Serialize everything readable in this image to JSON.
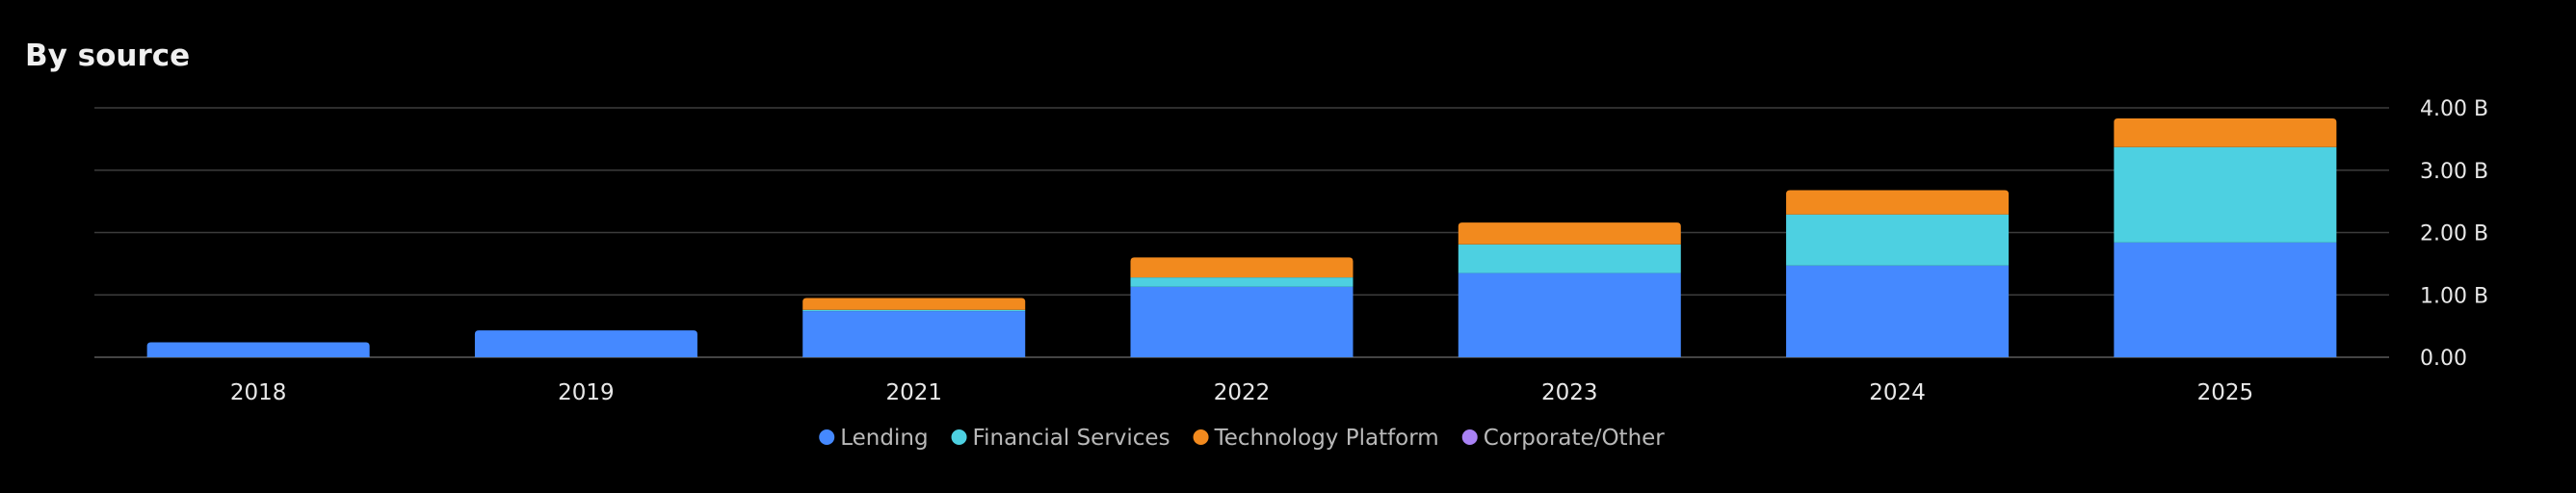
{
  "chart_data": {
    "type": "bar",
    "stacked": true,
    "title": "By source",
    "categories": [
      "2018",
      "2019",
      "2021",
      "2022",
      "2023",
      "2024",
      "2025"
    ],
    "series": [
      {
        "name": "Lending",
        "color": "#4589ff",
        "values": [
          0.24,
          0.43,
          0.74,
          1.13,
          1.35,
          1.47,
          1.84
        ]
      },
      {
        "name": "Financial Services",
        "color": "#4dd0e1",
        "values": [
          0.0,
          0.0,
          0.02,
          0.15,
          0.46,
          0.82,
          1.53
        ]
      },
      {
        "name": "Technology Platform",
        "color": "#f28a1e",
        "values": [
          0.0,
          0.0,
          0.19,
          0.32,
          0.35,
          0.39,
          0.46
        ]
      },
      {
        "name": "Corporate/Other",
        "color": "#a982f5",
        "values": [
          0.0,
          0.0,
          0.0,
          0.0,
          0.0,
          0.0,
          0.0
        ]
      }
    ],
    "ylim": [
      0,
      4.0
    ],
    "yticks": [
      0,
      1,
      2,
      3,
      4
    ],
    "ytick_labels": [
      "0.00",
      "1.00 B",
      "2.00 B",
      "3.00 B",
      "4.00 B"
    ],
    "grid": true,
    "legend_position": "bottom-center",
    "axis_position": "right",
    "xlabel": "",
    "ylabel": ""
  }
}
